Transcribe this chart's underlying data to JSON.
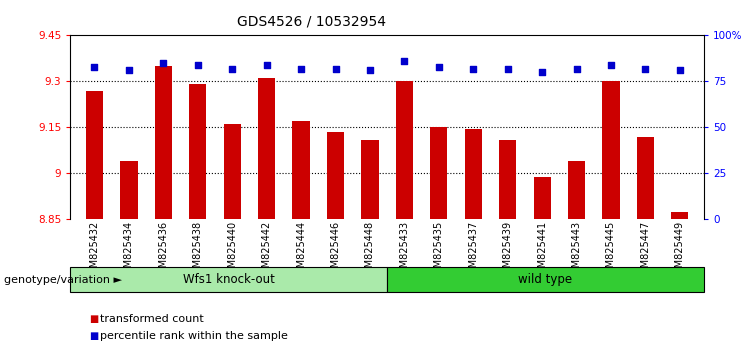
{
  "title": "GDS4526 / 10532954",
  "samples": [
    "GSM825432",
    "GSM825434",
    "GSM825436",
    "GSM825438",
    "GSM825440",
    "GSM825442",
    "GSM825444",
    "GSM825446",
    "GSM825448",
    "GSM825433",
    "GSM825435",
    "GSM825437",
    "GSM825439",
    "GSM825441",
    "GSM825443",
    "GSM825445",
    "GSM825447",
    "GSM825449"
  ],
  "red_values": [
    9.27,
    9.04,
    9.35,
    9.29,
    9.16,
    9.31,
    9.17,
    9.135,
    9.11,
    9.3,
    9.15,
    9.145,
    9.11,
    8.99,
    9.04,
    9.3,
    9.12,
    8.875
  ],
  "blue_values": [
    83,
    81,
    85,
    84,
    82,
    84,
    82,
    82,
    81,
    86,
    83,
    82,
    82,
    80,
    82,
    84,
    82,
    81
  ],
  "group1_label": "Wfs1 knock-out",
  "group2_label": "wild type",
  "group1_count": 9,
  "group2_count": 9,
  "ylim_left": [
    8.85,
    9.45
  ],
  "ylim_right": [
    0,
    100
  ],
  "yticks_left": [
    8.85,
    9.0,
    9.15,
    9.3,
    9.45
  ],
  "yticks_right": [
    0,
    25,
    50,
    75,
    100
  ],
  "ytick_labels_left": [
    "8.85",
    "9",
    "9.15",
    "9.3",
    "9.45"
  ],
  "ytick_labels_right": [
    "0",
    "25",
    "50",
    "75",
    "100%"
  ],
  "grid_values": [
    9.0,
    9.15,
    9.3
  ],
  "bar_color": "#cc0000",
  "dot_color": "#0000cc",
  "group1_bg": "#aaeaaa",
  "group2_bg": "#33cc33",
  "bar_width": 0.5,
  "genotype_label": "genotype/variation",
  "legend_red": "transformed count",
  "legend_blue": "percentile rank within the sample",
  "title_fontsize": 10,
  "tick_fontsize": 7.5,
  "label_fontsize": 8,
  "group_label_fontsize": 8.5
}
